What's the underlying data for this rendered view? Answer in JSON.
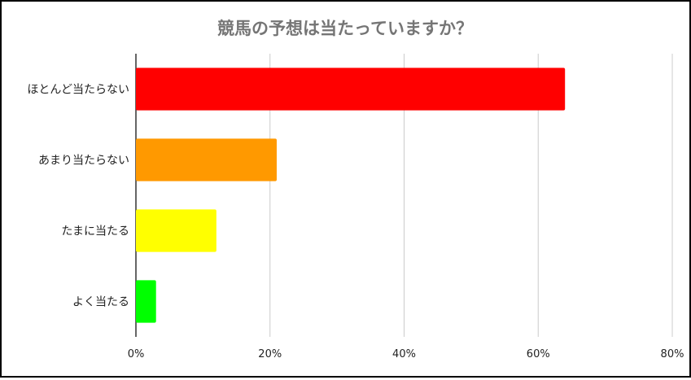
{
  "chart_data": {
    "type": "bar",
    "orientation": "horizontal",
    "title": "競馬の予想は当たっていますか？",
    "categories": [
      "ほとんど当たらない",
      "あまり当たらない",
      "たまに当たる",
      "よく当たる"
    ],
    "values": [
      64,
      21,
      12,
      3
    ],
    "unit": "%",
    "xlim": [
      0,
      80
    ],
    "xticks": [
      0,
      20,
      40,
      60,
      80
    ],
    "xtick_labels": [
      "0%",
      "20%",
      "40%",
      "60%",
      "80%"
    ],
    "grid": "vertical",
    "legend": "none",
    "colors": {
      "bars": [
        "#ff0000",
        "#ff9900",
        "#ffff00",
        "#00ff00"
      ],
      "title": "#757575",
      "grid": "#cccccc",
      "axis": "#333333"
    }
  }
}
